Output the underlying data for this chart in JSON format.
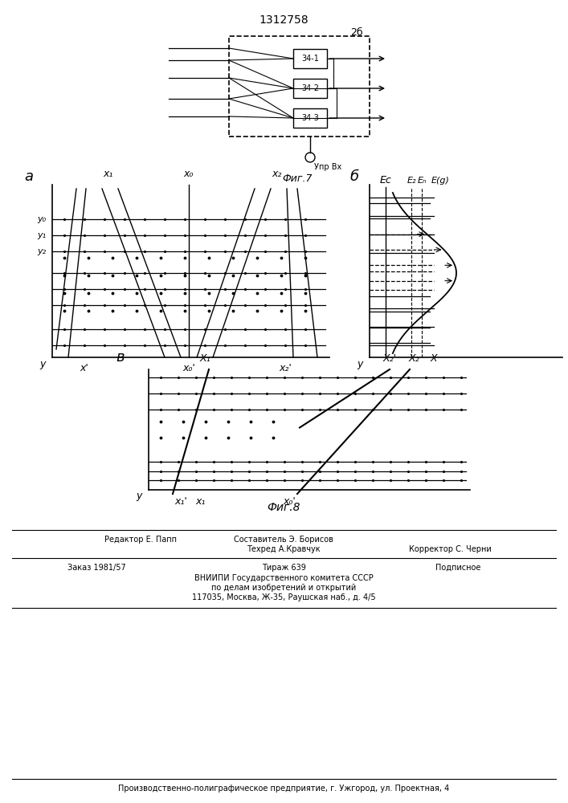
{
  "title": "1312758",
  "bg_color": "#ffffff",
  "fig7_label": "Фиг.7",
  "fig8_label": "Фиг.8",
  "uprvx_label": "Упр Вх",
  "block_label": "2б",
  "sub_labels_34": [
    "34-1",
    "34-2",
    "34-3"
  ],
  "fig_a_label": "а",
  "fig_b_label": "б",
  "fig_v_label": "в"
}
